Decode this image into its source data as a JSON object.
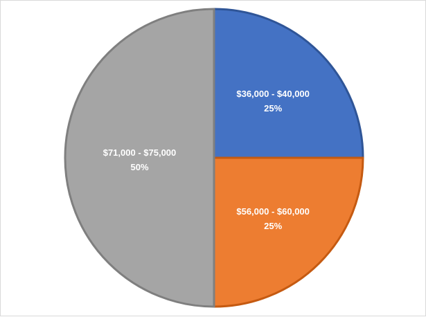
{
  "chart_data": {
    "type": "pie",
    "title": "",
    "legend": "none",
    "slices": [
      {
        "label": "$36,000 - $40,000",
        "percent_label": "25%",
        "value": 25,
        "color": "#4472C4",
        "border": "#2F5597"
      },
      {
        "label": "$56,000 - $60,000",
        "percent_label": "25%",
        "value": 25,
        "color": "#ED7D31",
        "border": "#C55A11"
      },
      {
        "label": "$71,000 - $75,000",
        "percent_label": "50%",
        "value": 50,
        "color": "#A5A5A5",
        "border": "#7F7F7F"
      }
    ]
  }
}
